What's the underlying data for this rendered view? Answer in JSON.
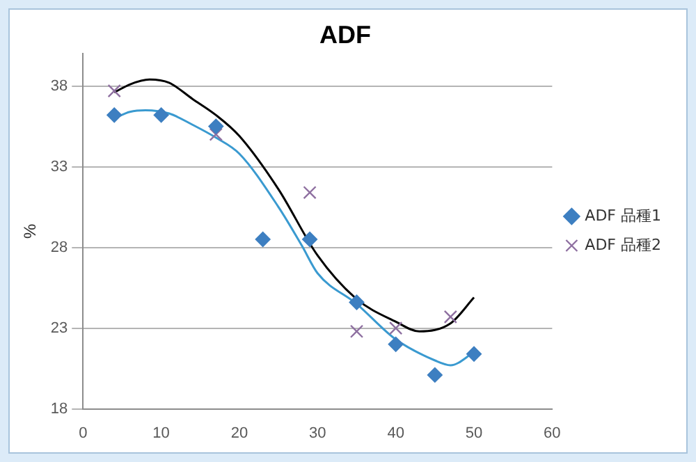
{
  "chart_data": {
    "type": "scatter",
    "title": "ADF",
    "ylabel": "%",
    "xlim": [
      0,
      60
    ],
    "xticks": [
      0,
      10,
      20,
      30,
      40,
      50,
      60
    ],
    "ylim": [
      18,
      40
    ],
    "yticks": [
      18,
      23,
      28,
      33,
      38
    ],
    "grid": "y",
    "legend": "right",
    "series": [
      {
        "name": "ADF 品種1",
        "type": "scatter",
        "marker": "diamond",
        "color": "#3d7fc1",
        "x": [
          4,
          10,
          17,
          23,
          29,
          35,
          40,
          45,
          50
        ],
        "values": [
          36.2,
          36.2,
          35.5,
          28.5,
          28.5,
          24.6,
          22.0,
          20.1,
          21.4
        ]
      },
      {
        "name": "ADF 品種2",
        "type": "scatter",
        "marker": "cross",
        "color": "#8e6fa0",
        "x": [
          4,
          17,
          29,
          35,
          40,
          47
        ],
        "values": [
          37.7,
          35.0,
          31.4,
          22.8,
          23.0,
          23.7
        ]
      },
      {
        "type": "line",
        "marker": "none",
        "color": "#000000",
        "x": [
          4,
          6,
          8.5,
          11,
          14,
          17,
          20,
          25,
          30,
          35,
          40,
          43,
          47,
          50
        ],
        "values": [
          37.6,
          38.1,
          38.4,
          38.2,
          37.2,
          36.2,
          34.9,
          31.6,
          27.5,
          24.8,
          23.4,
          22.8,
          23.3,
          24.9
        ]
      },
      {
        "type": "line",
        "marker": "none",
        "color": "#3a9ad0",
        "x": [
          4,
          6,
          8,
          11,
          14,
          17,
          20,
          25,
          28,
          30,
          35,
          40,
          45,
          47,
          50
        ],
        "values": [
          36.0,
          36.4,
          36.5,
          36.3,
          35.6,
          34.8,
          33.8,
          30.5,
          28.1,
          26.4,
          24.5,
          22.3,
          21.0,
          20.7,
          21.5
        ]
      }
    ]
  }
}
